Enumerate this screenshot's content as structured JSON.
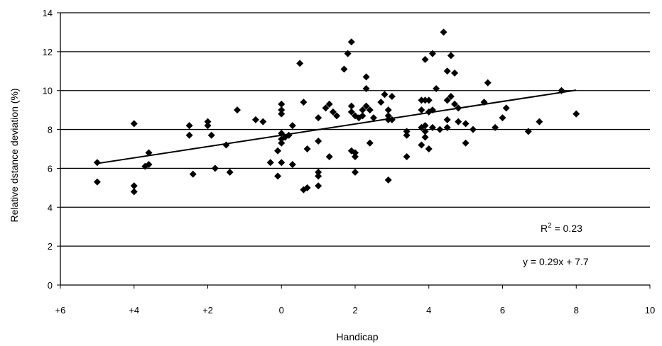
{
  "chart_data": {
    "type": "scatter",
    "xlabel": "Handicap",
    "ylabel": "Relative dstance deviation (%)",
    "xlim": [
      -6,
      10
    ],
    "ylim": [
      0,
      14
    ],
    "x_ticks": [
      {
        "value": -6,
        "label": "+6"
      },
      {
        "value": -4,
        "label": "+4"
      },
      {
        "value": -2,
        "label": "+2"
      },
      {
        "value": 0,
        "label": "0"
      },
      {
        "value": 2,
        "label": "2"
      },
      {
        "value": 4,
        "label": "4"
      },
      {
        "value": 6,
        "label": "6"
      },
      {
        "value": 8,
        "label": "8"
      },
      {
        "value": 10,
        "label": "10"
      }
    ],
    "y_ticks": [
      0,
      2,
      4,
      6,
      8,
      10,
      12,
      14
    ],
    "grid": "horizontal",
    "marker": "diamond",
    "marker_color": "#000000",
    "points": [
      [
        -5,
        6.3
      ],
      [
        -5,
        5.3
      ],
      [
        -4,
        8.3
      ],
      [
        -4,
        5.1
      ],
      [
        -4,
        4.8
      ],
      [
        -3.6,
        6.8
      ],
      [
        -3.6,
        6.2
      ],
      [
        -3.7,
        6.1
      ],
      [
        -2.5,
        8.2
      ],
      [
        -2.5,
        7.7
      ],
      [
        -2.4,
        5.7
      ],
      [
        -2,
        8.4
      ],
      [
        -2,
        8.2
      ],
      [
        -1.9,
        7.7
      ],
      [
        -1.8,
        6.0
      ],
      [
        -1.5,
        7.2
      ],
      [
        -1.4,
        5.8
      ],
      [
        -1.2,
        9.0
      ],
      [
        -0.7,
        8.5
      ],
      [
        -0.5,
        8.4
      ],
      [
        -0.3,
        6.3
      ],
      [
        -0.1,
        6.9
      ],
      [
        -0.1,
        5.6
      ],
      [
        0,
        9.3
      ],
      [
        0,
        9.0
      ],
      [
        0,
        8.8
      ],
      [
        0,
        7.8
      ],
      [
        0,
        7.5
      ],
      [
        0,
        7.3
      ],
      [
        0,
        6.3
      ],
      [
        0.1,
        7.6
      ],
      [
        0.2,
        7.7
      ],
      [
        0.3,
        8.2
      ],
      [
        0.3,
        6.2
      ],
      [
        0.5,
        11.4
      ],
      [
        0.6,
        9.4
      ],
      [
        0.6,
        4.9
      ],
      [
        0.7,
        7.0
      ],
      [
        0.7,
        5.0
      ],
      [
        1.0,
        8.6
      ],
      [
        1.0,
        7.4
      ],
      [
        1.0,
        5.8
      ],
      [
        1.0,
        5.6
      ],
      [
        1.0,
        5.1
      ],
      [
        1.2,
        9.1
      ],
      [
        1.3,
        9.3
      ],
      [
        1.3,
        6.6
      ],
      [
        1.4,
        8.9
      ],
      [
        1.5,
        8.7
      ],
      [
        1.7,
        11.1
      ],
      [
        1.8,
        11.9
      ],
      [
        1.9,
        12.5
      ],
      [
        1.9,
        9.2
      ],
      [
        1.9,
        8.9
      ],
      [
        1.9,
        6.9
      ],
      [
        2.0,
        8.7
      ],
      [
        2.0,
        6.8
      ],
      [
        2.0,
        6.6
      ],
      [
        2.0,
        5.8
      ],
      [
        2.1,
        8.6
      ],
      [
        2.2,
        9.0
      ],
      [
        2.2,
        8.7
      ],
      [
        2.3,
        10.7
      ],
      [
        2.3,
        10.1
      ],
      [
        2.3,
        9.2
      ],
      [
        2.4,
        9.0
      ],
      [
        2.4,
        7.3
      ],
      [
        2.5,
        8.6
      ],
      [
        2.7,
        9.4
      ],
      [
        2.8,
        9.8
      ],
      [
        2.9,
        9.0
      ],
      [
        2.9,
        8.7
      ],
      [
        2.9,
        8.5
      ],
      [
        3.0,
        9.7
      ],
      [
        3.0,
        8.5
      ],
      [
        2.9,
        5.4
      ],
      [
        3.4,
        7.9
      ],
      [
        3.4,
        7.7
      ],
      [
        3.4,
        6.6
      ],
      [
        3.8,
        9.5
      ],
      [
        3.8,
        9.0
      ],
      [
        3.8,
        8.1
      ],
      [
        3.8,
        7.2
      ],
      [
        3.9,
        11.6
      ],
      [
        3.9,
        9.5
      ],
      [
        3.9,
        8.2
      ],
      [
        3.9,
        7.9
      ],
      [
        3.9,
        7.6
      ],
      [
        4.0,
        9.5
      ],
      [
        4.0,
        8.9
      ],
      [
        4.0,
        7.0
      ],
      [
        4.1,
        11.9
      ],
      [
        4.1,
        9.0
      ],
      [
        4.1,
        8.1
      ],
      [
        4.2,
        10.1
      ],
      [
        4.3,
        8.0
      ],
      [
        4.4,
        13.0
      ],
      [
        4.5,
        9.5
      ],
      [
        4.5,
        11.0
      ],
      [
        4.5,
        8.5
      ],
      [
        4.5,
        8.1
      ],
      [
        4.6,
        11.8
      ],
      [
        4.6,
        9.7
      ],
      [
        4.7,
        10.9
      ],
      [
        4.7,
        9.3
      ],
      [
        4.8,
        9.1
      ],
      [
        4.8,
        8.4
      ],
      [
        5.0,
        8.3
      ],
      [
        5.0,
        7.3
      ],
      [
        5.2,
        8.0
      ],
      [
        5.5,
        9.4
      ],
      [
        5.6,
        10.4
      ],
      [
        5.8,
        8.1
      ],
      [
        6.0,
        8.6
      ],
      [
        6.1,
        9.1
      ],
      [
        6.7,
        7.9
      ],
      [
        7.0,
        8.4
      ],
      [
        7.6,
        10.0
      ],
      [
        8.0,
        8.8
      ]
    ],
    "trendline": {
      "slope": 0.29,
      "intercept": 7.7,
      "x_range": [
        -5,
        8
      ]
    },
    "annotations": {
      "r2_base": "R",
      "r2_exp": "2",
      "r2_value": " = 0.23",
      "equation": "y = 0.29x + 7.7"
    }
  }
}
